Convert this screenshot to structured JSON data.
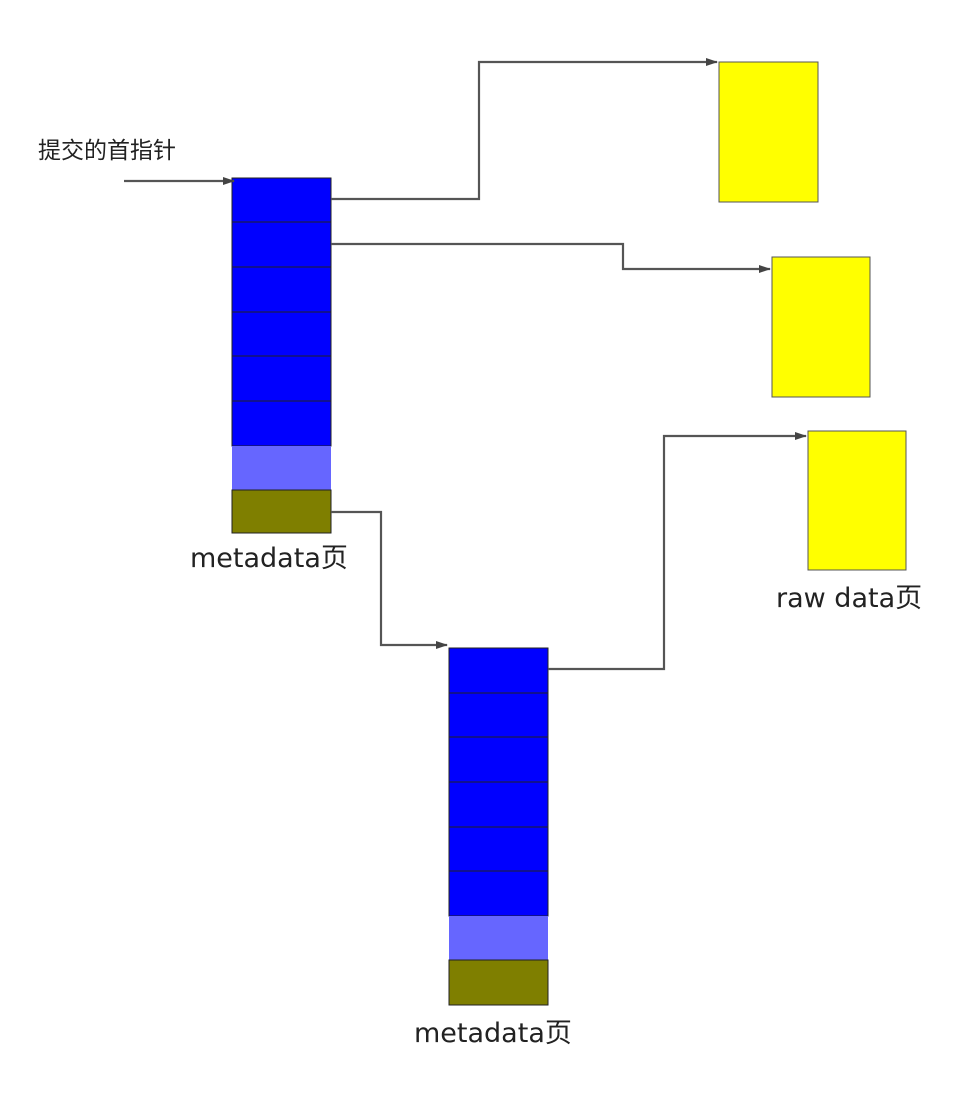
{
  "labels": {
    "commit_head_pointer": "提交的首指针",
    "metadata_page_top": "metadata页",
    "raw_data_page": "raw data页",
    "metadata_page_bottom": "metadata页"
  },
  "colors": {
    "pointer_slot": "#0000ff",
    "free_slot": "#6666ff",
    "next_pointer_slot": "#7f7f00",
    "raw_data_page": "#ffff00",
    "arrow": "#555555",
    "block_border": "#222222"
  },
  "metadata_pages": [
    {
      "name": "metadata-page-top",
      "pointer_slots": 6,
      "free_slots": 1,
      "next_slots": 1
    },
    {
      "name": "metadata-page-bottom",
      "pointer_slots": 6,
      "free_slots": 1,
      "next_slots": 1
    }
  ],
  "raw_data_pages": 3
}
